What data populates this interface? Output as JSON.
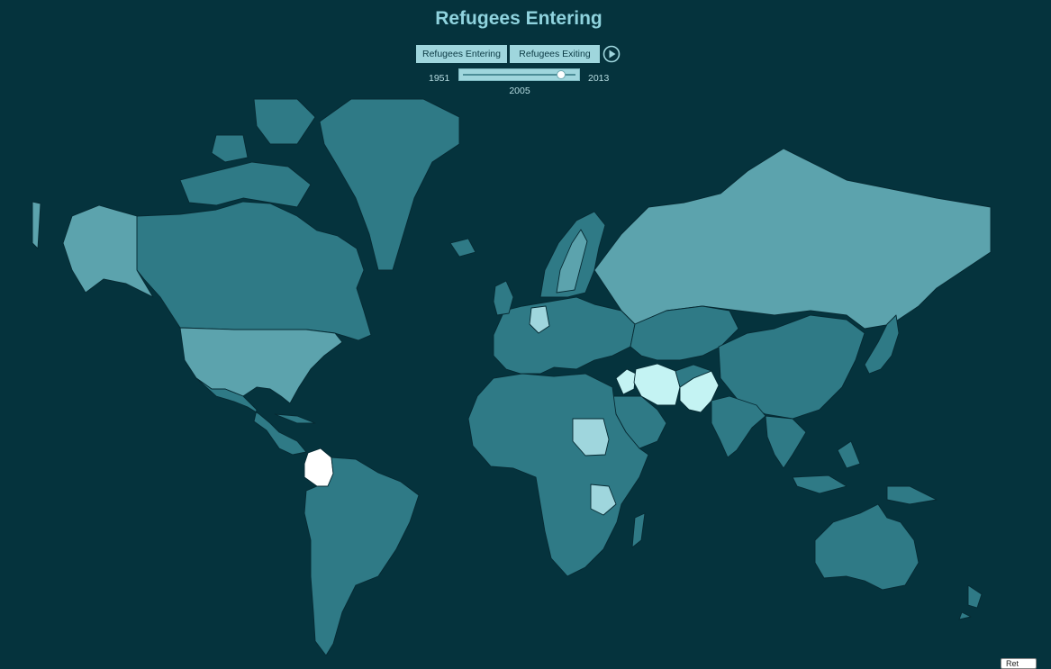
{
  "title": "Refugees Entering",
  "buttons": {
    "entering": "Refugees Entering",
    "exiting": "Refugees Exiting"
  },
  "play_icon": "play-icon",
  "slider": {
    "min": "1951",
    "max": "2013",
    "current": "2005",
    "position_fraction": 0.871
  },
  "corner_button": "Ret",
  "colors": {
    "background": "#05333d",
    "title": "#8fd3de",
    "button_bg": "#9fd6dd",
    "choropleth_low": "#2f7a86",
    "choropleth_mid": "#5ca3ad",
    "choropleth_high": "#c4f3f3",
    "choropleth_max": "#ffffff"
  },
  "map": {
    "type": "choropleth world map (Mercator)",
    "highlighted_regions": [
      {
        "region": "Colombia",
        "level": "highest"
      },
      {
        "region": "Iran",
        "level": "very high"
      },
      {
        "region": "Pakistan",
        "level": "very high"
      },
      {
        "region": "Syria",
        "level": "very high"
      },
      {
        "region": "Sudan",
        "level": "high"
      },
      {
        "region": "Tanzania",
        "level": "high"
      },
      {
        "region": "Germany",
        "level": "high"
      },
      {
        "region": "Russia",
        "level": "medium"
      },
      {
        "region": "Alaska / United States",
        "level": "medium"
      },
      {
        "region": "Sweden",
        "level": "medium"
      },
      {
        "region": "Australia",
        "level": "low"
      }
    ]
  }
}
